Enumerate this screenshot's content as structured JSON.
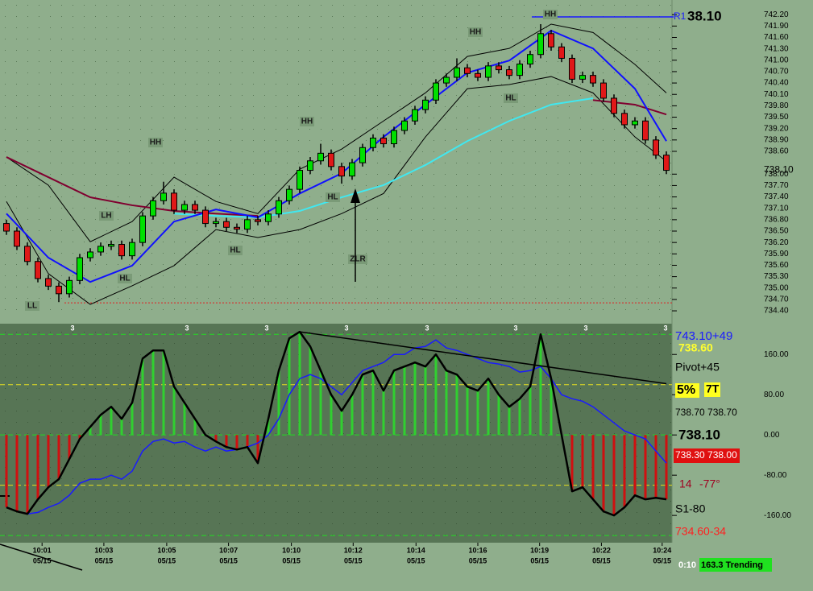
{
  "chart_data": [
    {
      "type": "candlestick",
      "open": [
        736.7,
        736.5,
        736.1,
        735.7,
        735.25,
        735.05,
        734.85,
        735.2,
        735.8,
        735.95,
        736.1,
        736.15,
        735.85,
        736.2,
        736.9,
        737.3,
        737.5,
        737.05,
        737.2,
        737.05,
        736.7,
        736.75,
        736.6,
        736.55,
        736.8,
        736.75,
        736.95,
        737.3,
        737.6,
        738.1,
        738.35,
        738.55,
        738.2,
        737.95,
        738.3,
        738.7,
        738.95,
        738.8,
        739.15,
        739.4,
        739.7,
        739.95,
        740.4,
        740.55,
        740.8,
        740.65,
        740.55,
        740.85,
        740.75,
        740.6,
        740.9,
        741.15,
        741.7,
        741.35,
        741.05,
        740.5,
        740.6,
        740.4,
        740.0,
        739.6,
        739.3,
        739.4,
        738.9,
        738.5
      ],
      "high": [
        736.8,
        736.6,
        736.2,
        735.8,
        735.35,
        735.15,
        735.3,
        735.9,
        736.05,
        736.2,
        736.25,
        736.25,
        736.3,
        737.0,
        737.4,
        737.8,
        737.6,
        737.3,
        737.3,
        737.15,
        736.85,
        736.85,
        736.7,
        736.9,
        736.9,
        737.05,
        737.4,
        737.7,
        738.2,
        738.45,
        738.8,
        738.65,
        738.3,
        738.4,
        738.8,
        739.05,
        739.05,
        739.25,
        739.5,
        739.8,
        740.05,
        740.5,
        740.65,
        741.05,
        740.9,
        740.75,
        740.95,
        740.95,
        740.85,
        741.0,
        741.25,
        741.95,
        741.8,
        741.45,
        741.15,
        740.7,
        740.7,
        740.5,
        740.1,
        739.7,
        739.5,
        739.5,
        739.0,
        738.6
      ],
      "low": [
        736.4,
        736.0,
        735.6,
        735.15,
        734.95,
        734.63,
        734.75,
        735.1,
        735.7,
        735.85,
        736.0,
        735.75,
        735.75,
        736.1,
        736.8,
        737.2,
        736.95,
        736.95,
        736.95,
        736.6,
        736.6,
        736.5,
        736.45,
        736.45,
        736.65,
        736.65,
        736.85,
        737.2,
        737.5,
        738.0,
        738.25,
        738.1,
        737.75,
        737.85,
        738.2,
        738.6,
        738.7,
        738.7,
        739.05,
        739.3,
        739.6,
        739.85,
        740.3,
        740.45,
        740.55,
        740.45,
        740.45,
        740.65,
        740.5,
        740.5,
        740.8,
        741.05,
        741.25,
        740.95,
        740.4,
        740.4,
        740.3,
        739.9,
        739.5,
        739.2,
        739.2,
        738.8,
        738.4,
        738.0
      ],
      "close": [
        736.5,
        736.1,
        735.7,
        735.25,
        735.05,
        734.85,
        735.2,
        735.8,
        735.95,
        736.1,
        736.15,
        735.85,
        736.2,
        736.9,
        737.3,
        737.5,
        737.05,
        737.2,
        737.05,
        736.7,
        736.75,
        736.6,
        736.55,
        736.8,
        736.75,
        736.95,
        737.3,
        737.6,
        738.1,
        738.35,
        738.55,
        738.2,
        737.95,
        738.3,
        738.7,
        738.95,
        738.8,
        739.15,
        739.4,
        739.7,
        739.95,
        740.4,
        740.55,
        740.8,
        740.65,
        740.55,
        740.85,
        740.75,
        740.6,
        740.9,
        741.15,
        741.7,
        741.35,
        741.05,
        740.5,
        740.6,
        740.4,
        740.0,
        739.6,
        739.3,
        739.4,
        738.9,
        738.5,
        738.1
      ],
      "up_color": "#00e000",
      "down_color": "#e01818",
      "line_x": [
        0,
        4,
        8,
        12,
        16,
        20,
        24,
        28,
        32,
        36,
        40,
        44,
        48,
        52,
        56,
        60,
        63
      ],
      "series": [
        {
          "color": "#000000",
          "values": [
            738.45,
            737.71,
            736.22,
            736.75,
            737.92,
            737.28,
            736.96,
            738.13,
            738.66,
            739.4,
            740.14,
            741.1,
            741.31,
            741.95,
            741.73,
            740.89,
            740.14
          ]
        },
        {
          "color": "#000000",
          "values": [
            737.28,
            735.38,
            734.57,
            735.06,
            735.59,
            736.54,
            736.33,
            736.54,
            736.96,
            737.49,
            738.98,
            740.25,
            740.36,
            740.57,
            740.14,
            738.98,
            738.34
          ]
        },
        {
          "color": "#800030",
          "values": [
            738.45,
            737.92,
            737.39,
            737.18,
            737.03,
            736.96,
            736.9,
            null,
            null,
            null,
            null,
            null,
            null,
            null,
            739.95,
            739.83,
            739.57
          ]
        },
        {
          "color": "#40e8f0",
          "values": [
            null,
            null,
            null,
            null,
            736.96,
            736.9,
            736.86,
            737.03,
            737.39,
            737.71,
            738.24,
            738.87,
            739.4,
            739.83,
            740.0,
            null,
            null
          ]
        },
        {
          "color": "#1010ff",
          "values": [
            736.96,
            735.8,
            735.16,
            735.59,
            736.75,
            737.07,
            736.86,
            737.49,
            738.02,
            738.98,
            739.83,
            740.67,
            740.99,
            741.78,
            741.31,
            740.25,
            738.87
          ]
        }
      ],
      "support_line": 734.61,
      "support_color": "#e02020",
      "r1_line": 742.14,
      "r1_label": "R1",
      "r1_price": "38.10",
      "last_price": {
        "value": 738.1,
        "label": "738.10"
      },
      "annotations": [
        "LL",
        "HL",
        "LH",
        "HH",
        "HL",
        "HH",
        "HL",
        "ZLR",
        "HH",
        "HL",
        "HH"
      ],
      "ylim": [
        734.21,
        742.48
      ],
      "yticks": [
        {
          "value": 742.2,
          "label": "742.20"
        },
        {
          "value": 741.9,
          "label": "741.90"
        },
        {
          "value": 741.6,
          "label": "741.60"
        },
        {
          "value": 741.3,
          "label": "741.30"
        },
        {
          "value": 741,
          "label": "741.00"
        },
        {
          "value": 740.7,
          "label": "740.70"
        },
        {
          "value": 740.4,
          "label": "740.40"
        },
        {
          "value": 740.1,
          "label": "740.10"
        },
        {
          "value": 739.8,
          "label": "739.80"
        },
        {
          "value": 739.5,
          "label": "739.50"
        },
        {
          "value": 739.2,
          "label": "739.20"
        },
        {
          "value": 738.9,
          "label": "738.90"
        },
        {
          "value": 738.6,
          "label": "738.60"
        },
        {
          "value": 738,
          "label": "738.00"
        },
        {
          "value": 737.7,
          "label": "737.70"
        },
        {
          "value": 737.4,
          "label": "737.40"
        },
        {
          "value": 737.1,
          "label": "737.10"
        },
        {
          "value": 736.8,
          "label": "736.80"
        },
        {
          "value": 736.5,
          "label": "736.50"
        },
        {
          "value": 736.2,
          "label": "736.20"
        },
        {
          "value": 735.9,
          "label": "735.90"
        },
        {
          "value": 735.6,
          "label": "735.60"
        },
        {
          "value": 735.3,
          "label": "735.30"
        },
        {
          "value": 735,
          "label": "735.00"
        },
        {
          "value": 734.7,
          "label": "734.70"
        },
        {
          "value": 734.4,
          "label": "734.40"
        }
      ],
      "xticks": [
        {
          "value": 3.4,
          "label": "10:01",
          "date": "05/15"
        },
        {
          "value": 9.3,
          "label": "10:03",
          "date": "05/15"
        },
        {
          "value": 15.3,
          "label": "10:05",
          "date": "05/15"
        },
        {
          "value": 21.2,
          "label": "10:07",
          "date": "05/15"
        },
        {
          "value": 27.2,
          "label": "10:10",
          "date": "05/15"
        },
        {
          "value": 33.1,
          "label": "10:12",
          "date": "05/15"
        },
        {
          "value": 39.1,
          "label": "10:14",
          "date": "05/15"
        },
        {
          "value": 45,
          "label": "10:16",
          "date": "05/15"
        },
        {
          "value": 50.9,
          "label": "10:19",
          "date": "05/15"
        },
        {
          "value": 56.8,
          "label": "10:22",
          "date": "05/15"
        },
        {
          "value": 62.6,
          "label": "10:24",
          "date": "05/15"
        }
      ]
    },
    {
      "type": "oscillator",
      "values": [
        -144,
        -152,
        -157,
        -128,
        -104,
        -88,
        -48,
        -8,
        16,
        40,
        56,
        32,
        64,
        152,
        168,
        168,
        96,
        64,
        32,
        0,
        -13,
        -24,
        -29,
        -24,
        -56,
        32,
        128,
        192,
        205,
        176,
        128,
        80,
        48,
        80,
        120,
        128,
        88,
        128,
        136,
        144,
        136,
        160,
        128,
        120,
        96,
        88,
        112,
        80,
        56,
        72,
        96,
        200,
        112,
        0,
        -112,
        -104,
        -128,
        -152,
        -160,
        -144,
        -120,
        -128,
        -125,
        -128
      ],
      "positive_color": "#30d030",
      "negative_color": "#d01010",
      "line_color": "#000000",
      "signal": {
        "color": "#1a1aff",
        "values": [
          -144,
          -152,
          -157,
          -154,
          -144,
          -136,
          -120,
          -96,
          -88,
          -88,
          -80,
          -88,
          -72,
          -32,
          -13,
          -8,
          -16,
          -13,
          -24,
          -32,
          -24,
          -32,
          -29,
          -24,
          -16,
          0,
          32,
          80,
          112,
          120,
          112,
          96,
          80,
          104,
          128,
          136,
          144,
          160,
          160,
          173,
          176,
          189,
          173,
          168,
          160,
          152,
          144,
          141,
          136,
          125,
          128,
          136,
          112,
          80,
          72,
          67,
          56,
          40,
          24,
          8,
          0,
          -8,
          -32,
          -56
        ]
      },
      "trendline": {
        "x": [
          28,
          63
        ],
        "values": [
          205,
          102
        ],
        "color": "#000000"
      },
      "levels": [
        200,
        100,
        0,
        -100,
        -200
      ],
      "level_colors": [
        "#22dd22",
        "#e8e020",
        "#22dd22",
        "#e8e020",
        "#22dd22"
      ],
      "markers": [
        "3",
        "3",
        "3",
        "3",
        "3",
        "3",
        "3",
        "3"
      ],
      "ylim": [
        -211,
        218
      ],
      "yticks": [
        {
          "value": 160,
          "label": "160.00"
        },
        {
          "value": 80,
          "label": "80.00"
        },
        {
          "value": 0,
          "label": "0.00"
        },
        {
          "value": -80,
          "label": "-80.00"
        },
        {
          "value": -160,
          "label": "-160.00"
        }
      ]
    }
  ],
  "side_panel": [
    {
      "text": "743.10+49",
      "color": "#1a1aff"
    },
    {
      "text": "738.60",
      "color": "#ffff30"
    },
    {
      "text": "Pivot+45",
      "color": "#000000"
    },
    {
      "text": "5%",
      "color": "#000000"
    },
    {
      "text": "7T",
      "color": "#000000"
    },
    {
      "text": "738.70 738.70",
      "color": "#000000"
    },
    {
      "text": "738.10",
      "color": "#000000"
    },
    {
      "text": "738.30 738.00",
      "color": "#ffffff"
    },
    {
      "text": "14",
      "color": "#a00020"
    },
    {
      "text": "-77°",
      "color": "#a00020"
    },
    {
      "text": "S1-80",
      "color": "#000000"
    },
    {
      "text": "734.60-34",
      "color": "#ff2020"
    }
  ],
  "status": {
    "clock": "0:10",
    "trend": "163.3 Trending"
  }
}
